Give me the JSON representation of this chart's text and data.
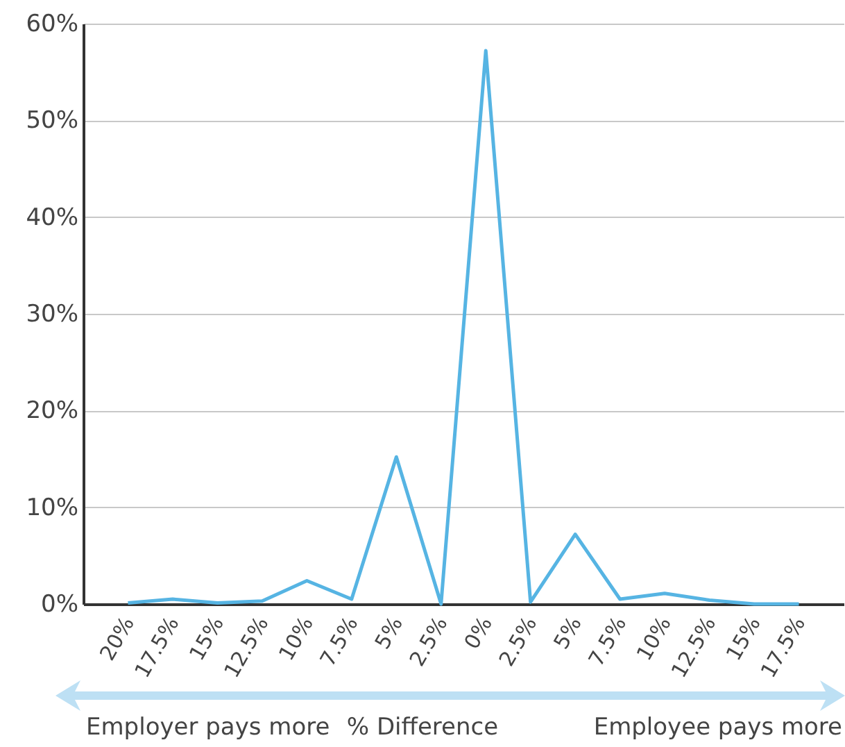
{
  "chart_data": {
    "type": "line",
    "xlabel": "% Difference",
    "categories": [
      "20%",
      "17.5%",
      "15%",
      "12.5%",
      "10%",
      "7.5%",
      "5%",
      "2.5%",
      "0%",
      "2.5%",
      "5%",
      "7.5%",
      "10%",
      "12.5%",
      "15%",
      "17.5%"
    ],
    "series": [
      {
        "color": "#56b4e3",
        "values": [
          0.1,
          0.5,
          0.1,
          0.3,
          2.4,
          0.5,
          15.2,
          0,
          57.2,
          0.2,
          7.2,
          0.5,
          1.1,
          0.4,
          0,
          0
        ]
      }
    ],
    "ylim": [
      0,
      60
    ],
    "yticks": [
      {
        "value": 0,
        "label": "0%"
      },
      {
        "value": 10,
        "label": "10%"
      },
      {
        "value": 20,
        "label": "20%"
      },
      {
        "value": 30,
        "label": "30%"
      },
      {
        "value": 40,
        "label": "40%"
      },
      {
        "value": 50,
        "label": "50%"
      },
      {
        "value": 60,
        "label": "60%"
      }
    ],
    "grid": "y",
    "annotations": [
      "Employer pays more",
      "Employee pays more"
    ]
  }
}
